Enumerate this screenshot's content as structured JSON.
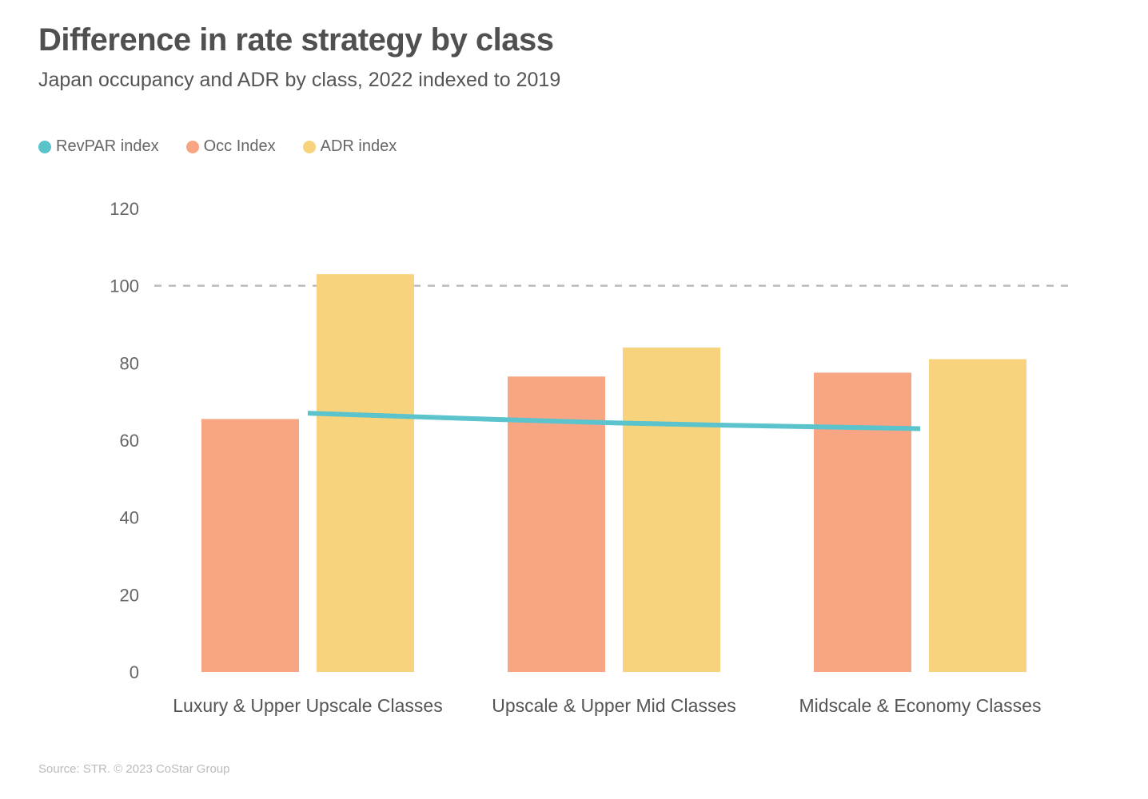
{
  "header": {
    "title": "Difference in rate strategy by class",
    "subtitle": "Japan occupancy and ADR by class, 2022 indexed to 2019"
  },
  "footer": {
    "source": "Source: STR. © 2023 CoStar Group"
  },
  "chart_data": {
    "type": "bar",
    "categories": [
      "Luxury & Upper Upscale Classes",
      "Upscale & Upper Mid Classes",
      "Midscale & Economy Classes"
    ],
    "series": [
      {
        "name": "RevPAR index",
        "type": "line",
        "color": "#5bc3cc",
        "values": [
          67,
          64.5,
          63
        ]
      },
      {
        "name": "Occ Index",
        "type": "bar",
        "color": "#f7a583",
        "values": [
          65.5,
          76.5,
          77.5
        ]
      },
      {
        "name": "ADR index",
        "type": "bar",
        "color": "#f7d37e",
        "values": [
          103,
          84,
          81
        ]
      }
    ],
    "ylim": [
      0,
      120
    ],
    "yticks": [
      0,
      20,
      40,
      60,
      80,
      100,
      120
    ],
    "reference_line": {
      "value": 100,
      "style": "dashed",
      "color": "#bbbbbb"
    },
    "grid": false,
    "legend": "top-left"
  }
}
